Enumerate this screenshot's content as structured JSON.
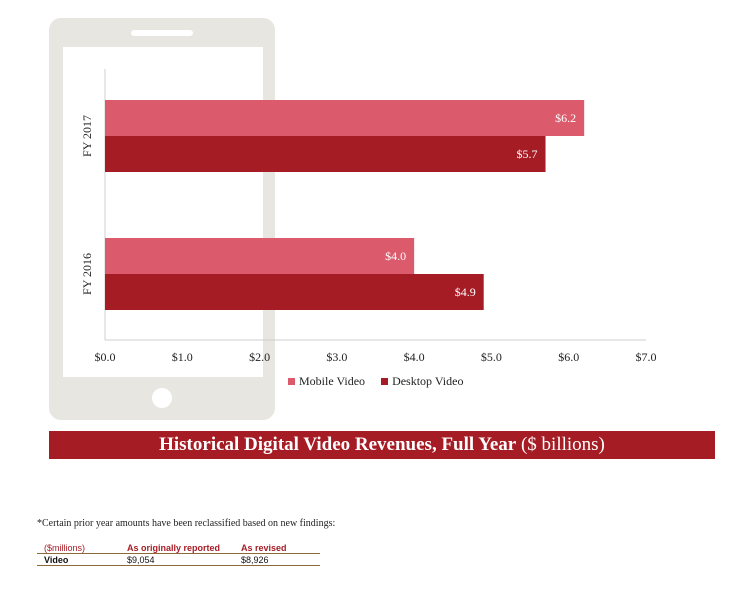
{
  "chart_data": {
    "type": "bar",
    "orientation": "horizontal",
    "categories": [
      "FY 2017",
      "FY 2016"
    ],
    "series": [
      {
        "name": "Mobile Video",
        "values": [
          6.2,
          4.0
        ],
        "labels": [
          "$6.2",
          "$4.0"
        ],
        "color": "#db5a6b"
      },
      {
        "name": "Desktop Video",
        "values": [
          5.7,
          4.9
        ],
        "labels": [
          "$5.7",
          "$4.9"
        ],
        "color": "#a61c25"
      }
    ],
    "xlim": [
      0,
      7
    ],
    "x_ticks": [
      0,
      1,
      2,
      3,
      4,
      5,
      6,
      7
    ],
    "x_tick_labels": [
      "$0.0",
      "$1.0",
      "$2.0",
      "$3.0",
      "$4.0",
      "$5.0",
      "$6.0",
      "$7.0"
    ],
    "grid": false,
    "legend_position": "bottom"
  },
  "title": {
    "main": "Historical Digital Video Revenues, Full Year",
    "unit": "($ billions)"
  },
  "footnote": "*Certain prior year amounts have been reclassified based on new findings:",
  "reclass_table": {
    "headers": [
      "($millions)",
      "As originally reported",
      "As revised"
    ],
    "rows": [
      [
        "Video",
        "$9,054",
        "$8,926"
      ]
    ]
  },
  "colors": {
    "phone_frame": "#e8e6e1",
    "banner": "#a61c25",
    "mobile": "#db5a6b",
    "desktop": "#a61c25"
  }
}
